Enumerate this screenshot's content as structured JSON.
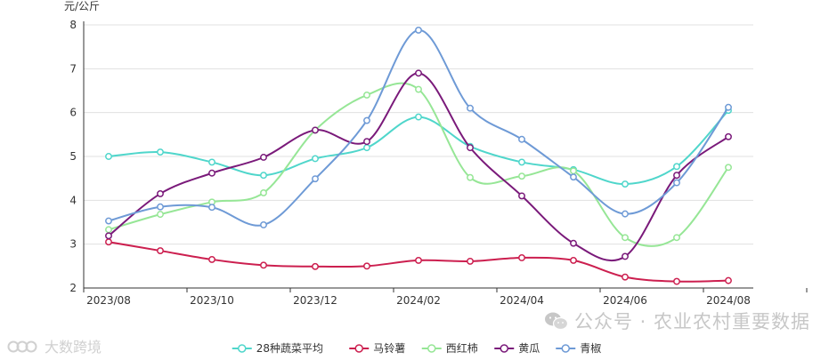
{
  "chart_data": {
    "type": "line",
    "title": "",
    "ylabel": "元/公斤",
    "xlabel": "",
    "ylim": [
      2,
      8
    ],
    "yticks": [
      2,
      3,
      4,
      5,
      6,
      7,
      8
    ],
    "x": [
      "2023/08",
      "2023/09",
      "2023/10",
      "2023/11",
      "2023/12",
      "2024/01",
      "2024/02",
      "2024/03",
      "2024/04",
      "2024/05",
      "2024/06",
      "2024/07",
      "2024/08"
    ],
    "x_tick_labels": [
      "2023/08",
      "2023/10",
      "2023/12",
      "2024/02",
      "2024/04",
      "2024/06",
      "2024/08"
    ],
    "grid": true,
    "legend_position": "bottom",
    "smooth": true,
    "series": [
      {
        "name": "28种蔬菜平均",
        "color": "#4fd6cb",
        "values": [
          5.0,
          5.1,
          4.87,
          4.57,
          4.95,
          5.2,
          5.9,
          5.23,
          4.87,
          4.7,
          4.37,
          4.77,
          6.05
        ]
      },
      {
        "name": "马铃薯",
        "color": "#cc1f4f",
        "values": [
          3.05,
          2.85,
          2.65,
          2.52,
          2.49,
          2.5,
          2.63,
          2.61,
          2.69,
          2.63,
          2.25,
          2.15,
          2.17
        ]
      },
      {
        "name": "西红柿",
        "color": "#96e696",
        "values": [
          3.33,
          3.68,
          3.96,
          4.17,
          5.6,
          6.4,
          6.53,
          4.52,
          4.55,
          4.67,
          3.15,
          3.15,
          4.75
        ]
      },
      {
        "name": "黄瓜",
        "color": "#7a1a7a",
        "values": [
          3.19,
          4.15,
          4.62,
          4.98,
          5.6,
          5.34,
          6.9,
          5.2,
          4.1,
          3.02,
          2.72,
          4.57,
          5.45
        ]
      },
      {
        "name": "青椒",
        "color": "#6e9ad6",
        "values": [
          3.53,
          3.85,
          3.84,
          3.44,
          4.49,
          5.82,
          7.88,
          6.1,
          5.39,
          4.53,
          3.69,
          4.4,
          6.12
        ]
      }
    ]
  },
  "watermark": {
    "right_text": "公众号 · 农业农村重要数据",
    "left_text": "大数跨境"
  },
  "icons": {
    "wechat": "wechat-icon",
    "logo": "brand-logo-icon",
    "legend_marker": "circle-line-icon"
  }
}
